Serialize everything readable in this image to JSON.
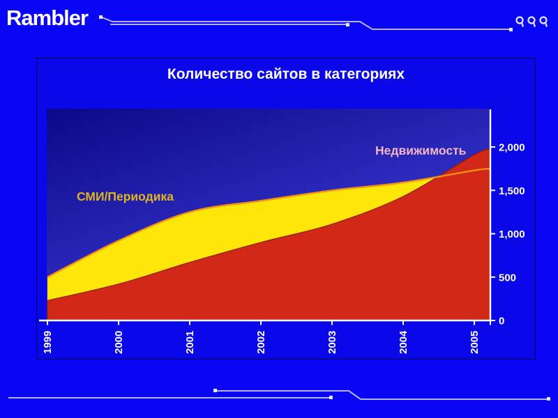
{
  "brand": {
    "logo_text": "Rambler",
    "magnifier_icon_count": 3
  },
  "slide": {
    "title": "Количество сайтов в категориях"
  },
  "chart_data": {
    "type": "area",
    "title": "Количество сайтов в категориях",
    "categories": [
      "1999",
      "2000",
      "2001",
      "2002",
      "2003",
      "2004",
      "2005"
    ],
    "series": [
      {
        "name": "СМИ/Периодика",
        "color": "#ffe60a",
        "edge_color": "#f29018",
        "label_color": "#dfb321",
        "values": [
          500,
          920,
          1250,
          1380,
          1500,
          1590,
          1730
        ]
      },
      {
        "name": "Недвижимость",
        "color": "#d22818",
        "edge_color": "#8a1e06",
        "label_color": "#f2b6c6",
        "values": [
          230,
          420,
          670,
          900,
          1110,
          1430,
          1910
        ]
      }
    ],
    "xlabel": "",
    "ylabel": "",
    "ylim": [
      0,
      2000
    ],
    "y_ticks": [
      "0",
      "500",
      "1,000",
      "1,500",
      "2,000"
    ],
    "y_tick_values": [
      0,
      500,
      1000,
      1500,
      2000
    ],
    "y_axis_side": "right",
    "x_tick_rotation": -90,
    "grid": false,
    "legend_position": "inline-labels"
  },
  "colors": {
    "slide_bg": "#0806f5",
    "panel_bg": "#0a08e8",
    "plot_bg_top": "#0c0988",
    "plot_bg_bottom": "#4240e0",
    "axis": "#ffffff",
    "tick_label": "#ffffff",
    "decoration_line": "#b4b4ee",
    "decoration_dot": "#e8e8ff"
  }
}
